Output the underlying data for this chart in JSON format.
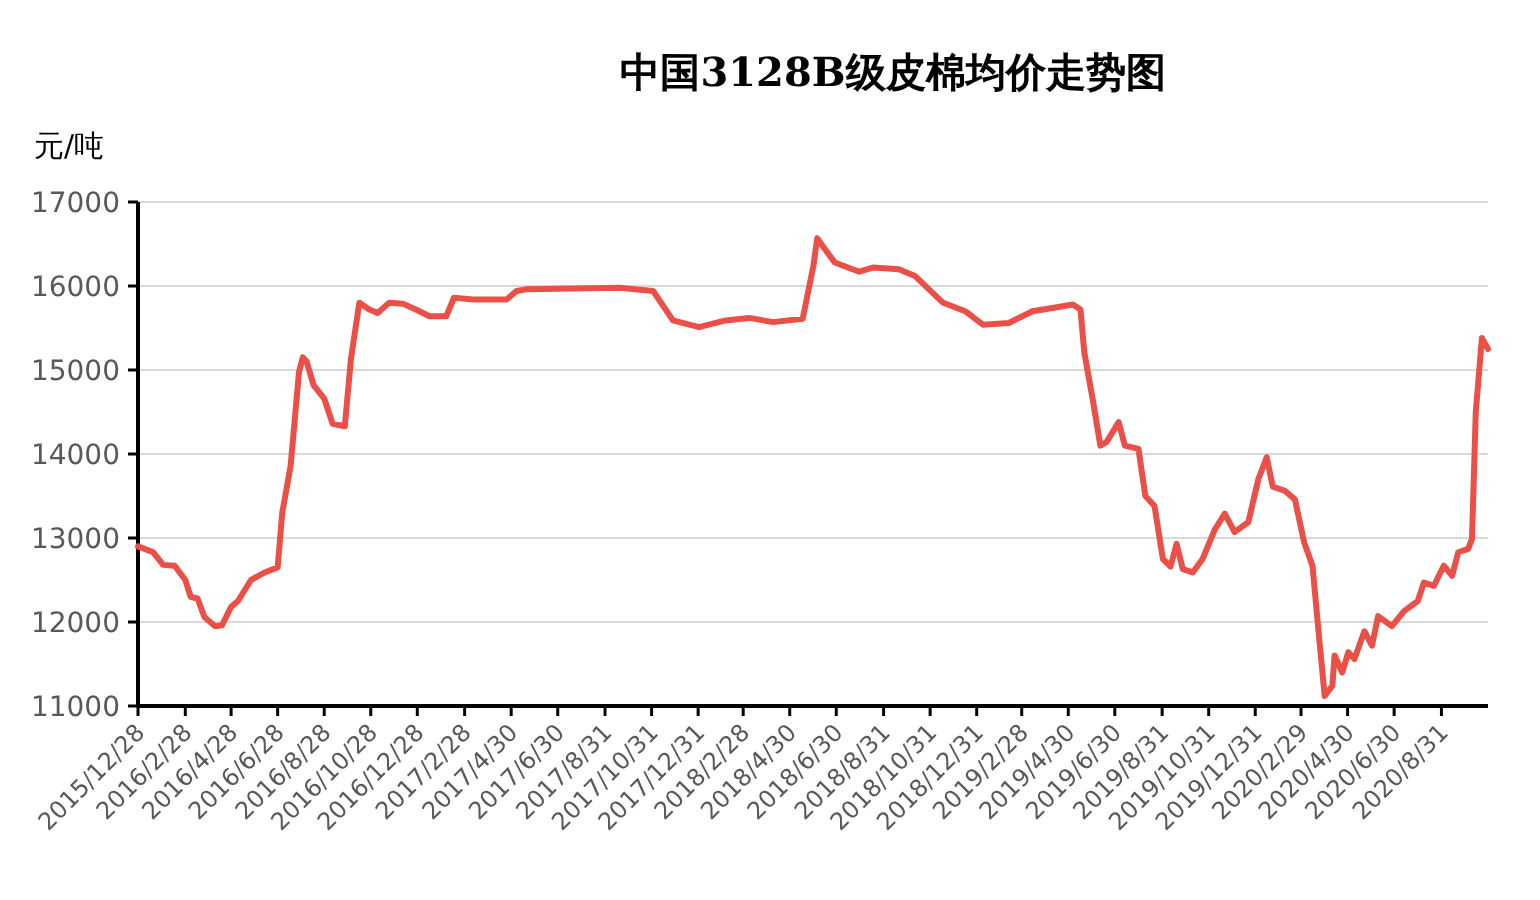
{
  "chart_data": {
    "type": "line",
    "title": "中国3128B级皮棉均价走势图",
    "ylabel": "元/吨",
    "x": [
      "2015-12-28",
      "2016-01-17",
      "2016-01-30",
      "2016-02-14",
      "2016-02-28",
      "2016-03-06",
      "2016-03-15",
      "2016-03-24",
      "2016-04-07",
      "2016-04-16",
      "2016-04-28",
      "2016-05-07",
      "2016-05-24",
      "2016-06-11",
      "2016-06-28",
      "2016-07-04",
      "2016-07-15",
      "2016-07-26",
      "2016-07-31",
      "2016-08-05",
      "2016-08-14",
      "2016-08-28",
      "2016-09-08",
      "2016-09-24",
      "2016-10-02",
      "2016-10-13",
      "2016-10-26",
      "2016-11-06",
      "2016-11-21",
      "2016-12-09",
      "2016-12-26",
      "2017-01-13",
      "2017-02-04",
      "2017-02-14",
      "2017-03-11",
      "2017-04-24",
      "2017-05-07",
      "2017-05-19",
      "2017-09-19",
      "2017-11-02",
      "2017-11-28",
      "2018-01-01",
      "2018-02-05",
      "2018-03-08",
      "2018-04-08",
      "2018-05-17",
      "2018-05-31",
      "2018-06-05",
      "2018-06-15",
      "2018-06-28",
      "2018-07-30",
      "2018-08-17",
      "2018-09-20",
      "2018-10-11",
      "2018-11-17",
      "2018-12-16",
      "2019-01-08",
      "2019-02-11",
      "2019-03-14",
      "2019-04-17",
      "2019-05-06",
      "2019-05-16",
      "2019-05-21",
      "2019-06-01",
      "2019-06-11",
      "2019-06-19",
      "2019-07-05",
      "2019-07-13",
      "2019-07-31",
      "2019-08-09",
      "2019-08-21",
      "2019-09-01",
      "2019-09-11",
      "2019-09-19",
      "2019-09-27",
      "2019-10-10",
      "2019-10-23",
      "2019-11-08",
      "2019-11-21",
      "2019-12-04",
      "2019-12-22",
      "2020-01-04",
      "2020-01-15",
      "2020-01-23",
      "2020-02-08",
      "2020-02-21",
      "2020-03-04",
      "2020-03-15",
      "2020-03-23",
      "2020-03-31",
      "2020-04-10",
      "2020-04-13",
      "2020-04-23",
      "2020-05-01",
      "2020-05-09",
      "2020-05-22",
      "2020-06-01",
      "2020-06-09",
      "2020-06-27",
      "2020-07-13",
      "2020-07-31",
      "2020-08-08",
      "2020-08-21",
      "2020-09-03",
      "2020-09-14",
      "2020-09-22",
      "2020-10-05",
      "2020-10-10",
      "2020-10-15",
      "2020-10-23",
      "2020-10-31"
    ],
    "series": [
      {
        "color": "#ea5048",
        "values": [
          12900,
          12830,
          12680,
          12670,
          12500,
          12300,
          12280,
          12060,
          11950,
          11960,
          12180,
          12250,
          12500,
          12590,
          12650,
          13300,
          13860,
          14980,
          15150,
          15100,
          14820,
          14660,
          14360,
          14330,
          15130,
          15800,
          15720,
          15680,
          15800,
          15790,
          15720,
          15640,
          15640,
          15860,
          15840,
          15840,
          15940,
          15960,
          15980,
          15940,
          15590,
          15510,
          15590,
          15620,
          15570,
          15610,
          16240,
          16570,
          16440,
          16280,
          16170,
          16220,
          16200,
          16120,
          15800,
          15700,
          15540,
          15560,
          15700,
          15750,
          15780,
          15720,
          15210,
          14650,
          14100,
          14140,
          14380,
          14100,
          14060,
          13500,
          13380,
          12750,
          12660,
          12930,
          12630,
          12590,
          12750,
          13100,
          13290,
          13070,
          13190,
          13700,
          13960,
          13610,
          13560,
          13460,
          12950,
          12670,
          11880,
          11120,
          11240,
          11600,
          11400,
          11640,
          11560,
          11890,
          11720,
          12070,
          11950,
          12130,
          12250,
          12470,
          12430,
          12670,
          12550,
          12830,
          12870,
          12990,
          14500,
          15380,
          15250
        ]
      }
    ],
    "xlim": [
      "2015-12-28",
      "2020-10-31"
    ],
    "xticks": [
      {
        "value": "2015-12-28",
        "label": "2015/12/28"
      },
      {
        "value": "2016-02-28",
        "label": "2016/2/28"
      },
      {
        "value": "2016-04-28",
        "label": "2016/4/28"
      },
      {
        "value": "2016-06-28",
        "label": "2016/6/28"
      },
      {
        "value": "2016-08-28",
        "label": "2016/8/28"
      },
      {
        "value": "2016-10-28",
        "label": "2016/10/28"
      },
      {
        "value": "2016-12-28",
        "label": "2016/12/28"
      },
      {
        "value": "2017-02-28",
        "label": "2017/2/28"
      },
      {
        "value": "2017-04-30",
        "label": "2017/4/30"
      },
      {
        "value": "2017-06-30",
        "label": "2017/6/30"
      },
      {
        "value": "2017-08-31",
        "label": "2017/8/31"
      },
      {
        "value": "2017-10-31",
        "label": "2017/10/31"
      },
      {
        "value": "2017-12-31",
        "label": "2017/12/31"
      },
      {
        "value": "2018-02-28",
        "label": "2018/2/28"
      },
      {
        "value": "2018-04-30",
        "label": "2018/4/30"
      },
      {
        "value": "2018-06-30",
        "label": "2018/6/30"
      },
      {
        "value": "2018-08-31",
        "label": "2018/8/31"
      },
      {
        "value": "2018-10-31",
        "label": "2018/10/31"
      },
      {
        "value": "2018-12-31",
        "label": "2018/12/31"
      },
      {
        "value": "2019-02-28",
        "label": "2019/2/28"
      },
      {
        "value": "2019-04-30",
        "label": "2019/4/30"
      },
      {
        "value": "2019-06-30",
        "label": "2019/6/30"
      },
      {
        "value": "2019-08-31",
        "label": "2019/8/31"
      },
      {
        "value": "2019-10-31",
        "label": "2019/10/31"
      },
      {
        "value": "2019-12-31",
        "label": "2019/12/31"
      },
      {
        "value": "2020-02-29",
        "label": "2020/2/29"
      },
      {
        "value": "2020-04-30",
        "label": "2020/4/30"
      },
      {
        "value": "2020-06-30",
        "label": "2020/6/30"
      },
      {
        "value": "2020-08-31",
        "label": "2020/8/31"
      }
    ],
    "ylim": [
      11000,
      17000
    ],
    "yticks": [
      11000,
      12000,
      13000,
      14000,
      15000,
      16000,
      17000
    ],
    "grid": "y",
    "line_style": "solid"
  }
}
